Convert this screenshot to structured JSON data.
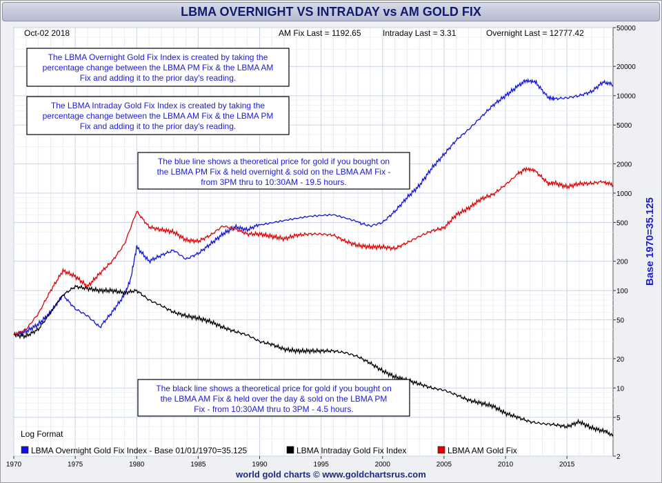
{
  "title": "LBMA OVERNIGHT VS INTRADAY vs AM GOLD FIX",
  "footer": "world gold charts © www.goldchartsrus.com",
  "header": {
    "date": "Oct-02  2018",
    "am_fix": "AM Fix Last = 1192.65",
    "intraday": "Intraday Last = 3.31",
    "overnight": "Overnight Last = 12777.42"
  },
  "notes": [
    {
      "lines": [
        "The LBMA Overnight Gold Fix Index is created by taking the",
        "percentage change between the LBMA PM Fix & the LBMA AM",
        "Fix and adding it to the prior day's reading."
      ],
      "color": "#1a1ad6"
    },
    {
      "lines": [
        "The LBMA Intraday Gold Fix Index is created by taking the",
        "percentage change between the LBMA AM Fix & the LBMA PM",
        "Fix and adding it to the prior day's reading."
      ],
      "color": "#1a1ad6"
    },
    {
      "lines": [
        "The blue line shows a theoretical price for gold if you bought on",
        "the LBMA PM Fix & held overnight & sold on the LBMA AM Fix -",
        "from 3PM thru to 10:30AM - 19.5 hours."
      ],
      "color": "#1a1ad6"
    },
    {
      "lines": [
        "The black line shows a theoretical price for gold if you bought on",
        "the LBMA AM Fix & held over the day & sold on the LBMA PM",
        "Fix - from 10:30AM thru to 3PM - 4.5 hours."
      ],
      "color": "#1a1ad6"
    }
  ],
  "log_format_label": "Log Format",
  "chart_data": {
    "type": "line",
    "yscale": "log",
    "ylabel": "Base 1970=35.125",
    "xlim": [
      1970,
      2018.75
    ],
    "ylim": [
      2,
      50000
    ],
    "grid": true,
    "legend_position": "bottom-left",
    "x_ticks": [
      "1970",
      "1975",
      "1980",
      "1985",
      "1990",
      "1995",
      "2000",
      "2005",
      "2010",
      "2015"
    ],
    "y_ticks": [
      "50000",
      "20000",
      "10000",
      "5000",
      "2000",
      "1000",
      "500",
      "200",
      "100",
      "50",
      "20",
      "10",
      "5",
      "2"
    ],
    "series": [
      {
        "name": "LBMA Overnight Gold Fix Index - Base 01/01/1970=35.125",
        "color": "#1010e0",
        "points": [
          [
            1970,
            35.1
          ],
          [
            1971,
            38
          ],
          [
            1972,
            45
          ],
          [
            1973,
            60
          ],
          [
            1974,
            90
          ],
          [
            1975,
            65
          ],
          [
            1976,
            55
          ],
          [
            1977,
            42
          ],
          [
            1978,
            60
          ],
          [
            1979,
            90
          ],
          [
            1979.5,
            130
          ],
          [
            1980,
            280
          ],
          [
            1981,
            200
          ],
          [
            1982,
            230
          ],
          [
            1983,
            260
          ],
          [
            1984,
            210
          ],
          [
            1985,
            240
          ],
          [
            1986,
            300
          ],
          [
            1987,
            380
          ],
          [
            1988,
            450
          ],
          [
            1989,
            420
          ],
          [
            1990,
            480
          ],
          [
            1992,
            520
          ],
          [
            1994,
            560
          ],
          [
            1996,
            580
          ],
          [
            1998,
            500
          ],
          [
            1999,
            460
          ],
          [
            2000,
            500
          ],
          [
            2001,
            650
          ],
          [
            2002,
            900
          ],
          [
            2003,
            1200
          ],
          [
            2004,
            1800
          ],
          [
            2005,
            2500
          ],
          [
            2006,
            3500
          ],
          [
            2007,
            4500
          ],
          [
            2008,
            6000
          ],
          [
            2009,
            8000
          ],
          [
            2010,
            10000
          ],
          [
            2011,
            12500
          ],
          [
            2011.7,
            14500
          ],
          [
            2012.5,
            13500
          ],
          [
            2013.5,
            9500
          ],
          [
            2014,
            9300
          ],
          [
            2015,
            9500
          ],
          [
            2016,
            10000
          ],
          [
            2017,
            11000
          ],
          [
            2018,
            14000
          ],
          [
            2018.75,
            12777
          ]
        ]
      },
      {
        "name": "LBMA Intraday Gold Fix Index",
        "color": "#000000",
        "points": [
          [
            1970,
            35.1
          ],
          [
            1971,
            34
          ],
          [
            1972,
            40
          ],
          [
            1973,
            60
          ],
          [
            1974,
            90
          ],
          [
            1975,
            110
          ],
          [
            1976,
            105
          ],
          [
            1977,
            100
          ],
          [
            1978,
            100
          ],
          [
            1979,
            95
          ],
          [
            1980,
            100
          ],
          [
            1981,
            80
          ],
          [
            1982,
            70
          ],
          [
            1983,
            60
          ],
          [
            1984,
            55
          ],
          [
            1985,
            52
          ],
          [
            1986,
            48
          ],
          [
            1987,
            42
          ],
          [
            1988,
            38
          ],
          [
            1989,
            35
          ],
          [
            1990,
            30
          ],
          [
            1991,
            28
          ],
          [
            1992,
            25
          ],
          [
            1993,
            24
          ],
          [
            1994,
            24
          ],
          [
            1995,
            24
          ],
          [
            1996,
            24
          ],
          [
            1997,
            23
          ],
          [
            1998,
            21
          ],
          [
            1999,
            18
          ],
          [
            2000,
            15
          ],
          [
            2001,
            13
          ],
          [
            2002,
            12
          ],
          [
            2003,
            11
          ],
          [
            2004,
            10
          ],
          [
            2005,
            9.5
          ],
          [
            2006,
            8.5
          ],
          [
            2007,
            7.5
          ],
          [
            2008,
            7
          ],
          [
            2009,
            6.5
          ],
          [
            2010,
            5.5
          ],
          [
            2011,
            5
          ],
          [
            2012,
            4.5
          ],
          [
            2013,
            4.3
          ],
          [
            2014,
            4.2
          ],
          [
            2015,
            4.0
          ],
          [
            2016,
            4.5
          ],
          [
            2017,
            3.9
          ],
          [
            2018,
            3.6
          ],
          [
            2018.75,
            3.31
          ]
        ]
      },
      {
        "name": "LBMA AM Gold Fix",
        "color": "#e00000",
        "points": [
          [
            1970,
            35.1
          ],
          [
            1971,
            40
          ],
          [
            1972,
            58
          ],
          [
            1973,
            100
          ],
          [
            1974,
            160
          ],
          [
            1975,
            140
          ],
          [
            1976,
            110
          ],
          [
            1977,
            150
          ],
          [
            1978,
            200
          ],
          [
            1979,
            300
          ],
          [
            1980,
            650
          ],
          [
            1981,
            450
          ],
          [
            1982,
            420
          ],
          [
            1983,
            400
          ],
          [
            1984,
            330
          ],
          [
            1985,
            320
          ],
          [
            1986,
            370
          ],
          [
            1987,
            460
          ],
          [
            1988,
            430
          ],
          [
            1989,
            380
          ],
          [
            1990,
            380
          ],
          [
            1991,
            360
          ],
          [
            1992,
            340
          ],
          [
            1993,
            370
          ],
          [
            1994,
            380
          ],
          [
            1995,
            380
          ],
          [
            1996,
            370
          ],
          [
            1997,
            320
          ],
          [
            1998,
            290
          ],
          [
            1999,
            280
          ],
          [
            2000,
            280
          ],
          [
            2001,
            270
          ],
          [
            2002,
            310
          ],
          [
            2003,
            360
          ],
          [
            2004,
            410
          ],
          [
            2005,
            440
          ],
          [
            2006,
            600
          ],
          [
            2007,
            700
          ],
          [
            2008,
            870
          ],
          [
            2009,
            970
          ],
          [
            2010,
            1220
          ],
          [
            2011,
            1570
          ],
          [
            2011.7,
            1800
          ],
          [
            2012.5,
            1650
          ],
          [
            2013.5,
            1250
          ],
          [
            2014,
            1270
          ],
          [
            2015,
            1160
          ],
          [
            2016,
            1250
          ],
          [
            2017,
            1260
          ],
          [
            2018,
            1320
          ],
          [
            2018.75,
            1192.65
          ]
        ]
      }
    ]
  }
}
